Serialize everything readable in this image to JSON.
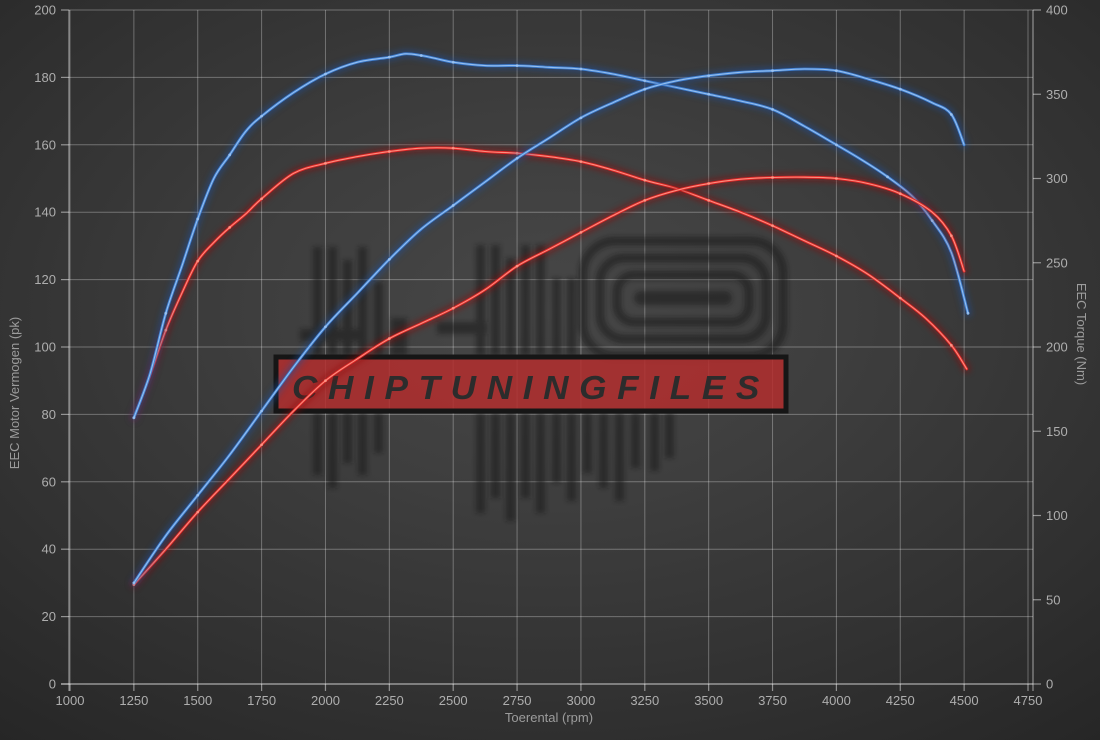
{
  "watermark": {
    "text": "CHIPTUNINGFILES",
    "banner_fill": "#b32e2e",
    "banner_border": "#161616",
    "logo_color": "#141414"
  },
  "axis": {
    "x_tick_labels": [
      "1000",
      "1250",
      "1500",
      "1750",
      "2000",
      "2250",
      "2500",
      "2750",
      "3000",
      "3250",
      "3500",
      "3750",
      "4000",
      "4250",
      "4500",
      "4750"
    ],
    "y_left_tick_labels": [
      "0",
      "20",
      "40",
      "60",
      "80",
      "100",
      "120",
      "140",
      "160",
      "180",
      "200"
    ],
    "y_right_tick_labels": [
      "0",
      "50",
      "100",
      "150",
      "200",
      "250",
      "300",
      "350",
      "400"
    ]
  },
  "chart_data": {
    "type": "line",
    "title": "",
    "xlabel": "Toerental (rpm)",
    "ylabel_left": "EEC Motor Vermogen (pk)",
    "ylabel_right": "EEC Torque (Nm)",
    "xlim": [
      1000,
      4750
    ],
    "ylim_left": [
      0,
      200
    ],
    "ylim_right": [
      0,
      400
    ],
    "x_ticks": [
      1000,
      1250,
      1500,
      1750,
      2000,
      2250,
      2500,
      2750,
      3000,
      3250,
      3500,
      3750,
      4000,
      4250,
      4500,
      4750
    ],
    "y_left_ticks": [
      0,
      20,
      40,
      60,
      80,
      100,
      120,
      140,
      160,
      180,
      200
    ],
    "y_right_ticks": [
      0,
      50,
      100,
      150,
      200,
      250,
      300,
      350,
      400
    ],
    "grid": true,
    "legend": "none",
    "series": [
      {
        "name": "torque-original",
        "axis": "right",
        "unit": "Nm",
        "color": "#e02525",
        "glow": "#930f0f",
        "light": "#ff9a8a",
        "x": [
          1250,
          1313,
          1375,
          1438,
          1500,
          1563,
          1625,
          1688,
          1750,
          1875,
          2000,
          2125,
          2250,
          2375,
          2500,
          2625,
          2750,
          2875,
          3000,
          3125,
          3250,
          3375,
          3500,
          3625,
          3750,
          3875,
          4000,
          4125,
          4250,
          4350,
          4450,
          4510
        ],
        "values": [
          158,
          183,
          210,
          232,
          251,
          262,
          271,
          279,
          288,
          303,
          309,
          313,
          316,
          318,
          318,
          316,
          315,
          313,
          310,
          305,
          299,
          294,
          287,
          280,
          272,
          263,
          254,
          243,
          229,
          217,
          201,
          187
        ]
      },
      {
        "name": "torque-tuned",
        "axis": "right",
        "unit": "Nm",
        "color": "#3f7fd2",
        "glow": "#1c4f9e",
        "light": "#9fc6f2",
        "x": [
          1250,
          1313,
          1375,
          1438,
          1500,
          1563,
          1625,
          1688,
          1750,
          1875,
          2000,
          2125,
          2250,
          2313,
          2375,
          2438,
          2500,
          2625,
          2750,
          2875,
          3000,
          3125,
          3250,
          3375,
          3500,
          3625,
          3750,
          3875,
          4000,
          4100,
          4200,
          4300,
          4375,
          4450,
          4515
        ],
        "values": [
          158,
          184,
          220,
          248,
          276,
          300,
          314,
          328,
          337,
          351,
          362,
          369,
          372,
          374,
          373,
          371,
          369,
          367,
          367,
          366,
          365,
          362,
          358,
          354,
          350,
          346,
          341,
          331,
          320,
          311,
          301,
          289,
          275,
          256,
          220
        ]
      },
      {
        "name": "power-original",
        "axis": "left",
        "unit": "pk",
        "color": "#e02525",
        "glow": "#930f0f",
        "light": "#ff9a8a",
        "x": [
          1250,
          1375,
          1500,
          1625,
          1750,
          1875,
          2000,
          2125,
          2250,
          2375,
          2500,
          2625,
          2750,
          2875,
          3000,
          3125,
          3250,
          3375,
          3500,
          3625,
          3750,
          3875,
          4000,
          4125,
          4250,
          4375,
          4450,
          4500
        ],
        "values": [
          29.5,
          40,
          51,
          61,
          71,
          81,
          90,
          96.5,
          102.5,
          107,
          111.5,
          117,
          124,
          129,
          134,
          139,
          143.5,
          146.5,
          148.5,
          149.8,
          150.3,
          150.4,
          150,
          148.5,
          145.5,
          140,
          133,
          122.5
        ]
      },
      {
        "name": "power-tuned",
        "axis": "left",
        "unit": "pk",
        "color": "#3f7fd2",
        "glow": "#1c4f9e",
        "light": "#9fc6f2",
        "x": [
          1250,
          1375,
          1500,
          1625,
          1750,
          1875,
          2000,
          2125,
          2250,
          2375,
          2500,
          2625,
          2750,
          2875,
          3000,
          3125,
          3250,
          3375,
          3500,
          3625,
          3750,
          3875,
          4000,
          4125,
          4250,
          4375,
          4450,
          4500
        ],
        "values": [
          30,
          44,
          56,
          68,
          81,
          94,
          106,
          116,
          126,
          135,
          142,
          149,
          156,
          162,
          168,
          172.5,
          176.5,
          179,
          180.5,
          181.5,
          182,
          182.5,
          182,
          179.5,
          176.5,
          172.5,
          169,
          160
        ]
      }
    ]
  }
}
